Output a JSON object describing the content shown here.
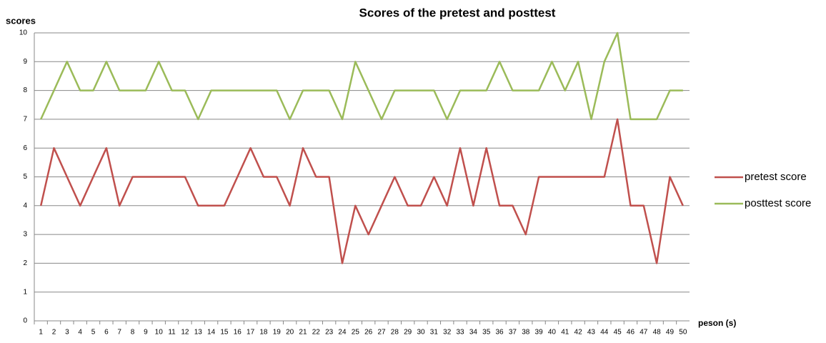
{
  "chart_data": {
    "type": "line",
    "title": "Scores of the pretest and posttest",
    "y_label": "scores",
    "x_label": "peson (s)",
    "categories": [
      1,
      2,
      3,
      4,
      5,
      6,
      7,
      8,
      9,
      10,
      11,
      12,
      13,
      14,
      15,
      16,
      17,
      18,
      19,
      20,
      21,
      22,
      23,
      24,
      25,
      26,
      27,
      28,
      29,
      30,
      31,
      32,
      33,
      34,
      35,
      36,
      37,
      38,
      39,
      40,
      41,
      42,
      43,
      44,
      45,
      46,
      47,
      48,
      49,
      50
    ],
    "series": [
      {
        "name": "pretest score",
        "color": "#c0504d",
        "values": [
          4,
          6,
          5,
          4,
          5,
          6,
          4,
          5,
          5,
          5,
          5,
          5,
          4,
          4,
          4,
          5,
          6,
          5,
          5,
          4,
          6,
          5,
          5,
          2,
          4,
          3,
          4,
          5,
          4,
          4,
          5,
          4,
          6,
          4,
          6,
          4,
          4,
          3,
          5,
          5,
          5,
          5,
          5,
          5,
          7,
          4,
          4,
          2,
          5,
          4
        ]
      },
      {
        "name": "posttest score",
        "color": "#9bbb59",
        "values": [
          7,
          8,
          9,
          8,
          8,
          9,
          8,
          8,
          8,
          9,
          8,
          8,
          7,
          8,
          8,
          8,
          8,
          8,
          8,
          7,
          8,
          8,
          8,
          7,
          9,
          8,
          7,
          8,
          8,
          8,
          8,
          7,
          8,
          8,
          8,
          9,
          8,
          8,
          8,
          9,
          8,
          9,
          7,
          9,
          10,
          7,
          7,
          7,
          8,
          8
        ]
      }
    ],
    "ylim": [
      0,
      10
    ],
    "yticks": [
      0,
      1,
      2,
      3,
      4,
      5,
      6,
      7,
      8,
      9,
      10
    ],
    "grid": true,
    "legend": "right"
  }
}
